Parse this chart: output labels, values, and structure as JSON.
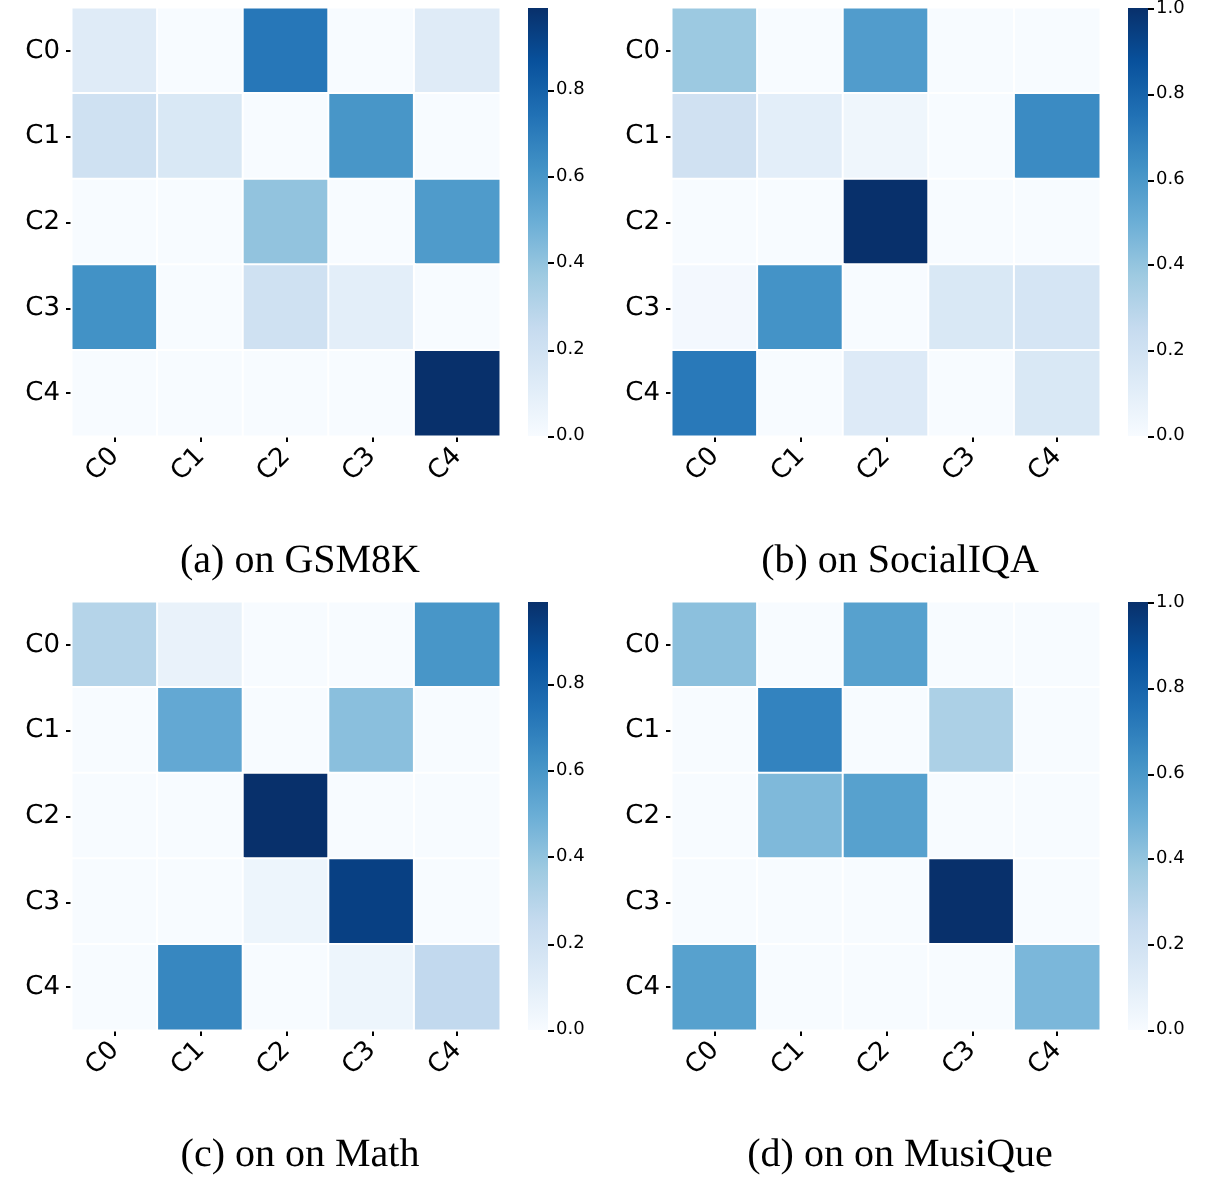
{
  "chart_data": [
    {
      "type": "heatmap",
      "title": "(a) on GSM8K",
      "categories": [
        "C0",
        "C1",
        "C2",
        "C3",
        "C4"
      ],
      "y_categories": [
        "C0",
        "C1",
        "C2",
        "C3",
        "C4"
      ],
      "cells": [
        [
          0.12,
          0,
          0.72,
          0,
          0.12
        ],
        [
          0.2,
          0.15,
          0,
          0.6,
          0
        ],
        [
          0,
          0,
          0.4,
          0,
          0.58
        ],
        [
          0.62,
          0,
          0.2,
          0.1,
          0
        ],
        [
          0,
          0,
          0,
          0,
          0.99
        ]
      ],
      "clim": [
        0,
        0.99
      ],
      "cticks": [
        {
          "value": 0,
          "label": "0.0"
        },
        {
          "value": 0.2,
          "label": "0.2"
        },
        {
          "value": 0.4,
          "label": "0.4"
        },
        {
          "value": 0.6,
          "label": "0.6"
        },
        {
          "value": 0.8,
          "label": "0.8"
        }
      ]
    },
    {
      "type": "heatmap",
      "title": "(b) on SocialIQA",
      "categories": [
        "C0",
        "C1",
        "C2",
        "C3",
        "C4"
      ],
      "y_categories": [
        "C0",
        "C1",
        "C2",
        "C3",
        "C4"
      ],
      "cells": [
        [
          0.38,
          0,
          0.58,
          0,
          0
        ],
        [
          0.2,
          0.1,
          0.04,
          0,
          0.65
        ],
        [
          0,
          0,
          1.0,
          0,
          0
        ],
        [
          0.02,
          0.62,
          0,
          0.15,
          0.17
        ],
        [
          0.72,
          0,
          0.13,
          0,
          0.15
        ]
      ],
      "clim": [
        0,
        1
      ],
      "cticks": [
        {
          "value": 0,
          "label": "0.0"
        },
        {
          "value": 0.2,
          "label": "0.2"
        },
        {
          "value": 0.4,
          "label": "0.4"
        },
        {
          "value": 0.6,
          "label": "0.6"
        },
        {
          "value": 0.8,
          "label": "0.8"
        },
        {
          "value": 1,
          "label": "1.0"
        }
      ]
    },
    {
      "type": "heatmap",
      "title": "(c) on on Math",
      "categories": [
        "C0",
        "C1",
        "C2",
        "C3",
        "C4"
      ],
      "y_categories": [
        "C0",
        "C1",
        "C2",
        "C3",
        "C4"
      ],
      "cells": [
        [
          0.3,
          0.07,
          0,
          0,
          0.6
        ],
        [
          0,
          0.52,
          0,
          0.42,
          0
        ],
        [
          0,
          0,
          0.99,
          0,
          0
        ],
        [
          0,
          0,
          0.05,
          0.93,
          0
        ],
        [
          0,
          0.66,
          0,
          0.05,
          0.26
        ]
      ],
      "clim": [
        0,
        0.99
      ],
      "cticks": [
        {
          "value": 0,
          "label": "0.0"
        },
        {
          "value": 0.2,
          "label": "0.2"
        },
        {
          "value": 0.4,
          "label": "0.4"
        },
        {
          "value": 0.6,
          "label": "0.6"
        },
        {
          "value": 0.8,
          "label": "0.8"
        }
      ]
    },
    {
      "type": "heatmap",
      "title": "(d) on on MusiQue",
      "categories": [
        "C0",
        "C1",
        "C2",
        "C3",
        "C4"
      ],
      "y_categories": [
        "C0",
        "C1",
        "C2",
        "C3",
        "C4"
      ],
      "cells": [
        [
          0.42,
          0,
          0.56,
          0,
          0
        ],
        [
          0,
          0.68,
          0,
          0.33,
          0
        ],
        [
          0,
          0.45,
          0.56,
          0,
          0
        ],
        [
          0,
          0,
          0,
          1.0,
          0
        ],
        [
          0.56,
          0,
          0,
          0,
          0.46
        ]
      ],
      "clim": [
        0,
        1
      ],
      "cticks": [
        {
          "value": 0,
          "label": "0.0"
        },
        {
          "value": 0.2,
          "label": "0.2"
        },
        {
          "value": 0.4,
          "label": "0.4"
        },
        {
          "value": 0.6,
          "label": "0.6"
        },
        {
          "value": 0.8,
          "label": "0.8"
        },
        {
          "value": 1,
          "label": "1.0"
        }
      ]
    }
  ]
}
